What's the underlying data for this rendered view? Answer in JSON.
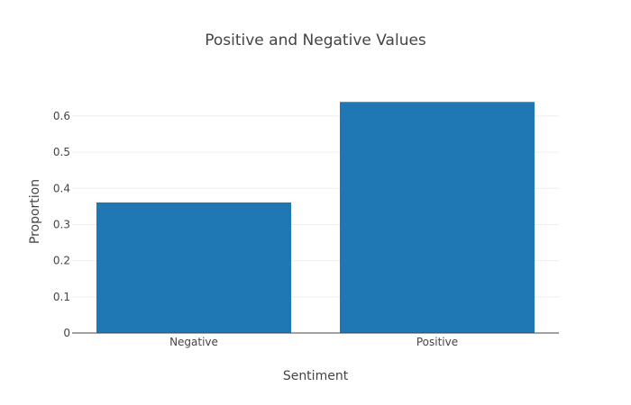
{
  "chart_data": {
    "type": "bar",
    "title": "Positive and Negative Values",
    "xlabel": "Sentiment",
    "ylabel": "Proportion",
    "categories": [
      "Negative",
      "Positive"
    ],
    "values": [
      0.361,
      0.639
    ],
    "ylim": [
      0,
      0.672
    ],
    "yticks": [
      0,
      0.1,
      0.2,
      0.3,
      0.4,
      0.5,
      0.6
    ],
    "ytick_labels": [
      "0",
      "0.1",
      "0.2",
      "0.3",
      "0.4",
      "0.5",
      "0.6"
    ],
    "grid": true,
    "bar_color": "#1f77b4"
  }
}
